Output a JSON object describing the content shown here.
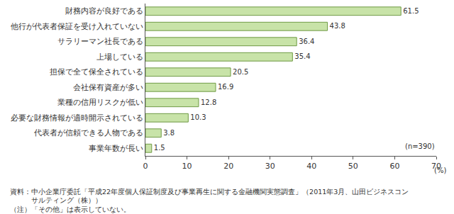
{
  "chart_data": {
    "type": "bar",
    "orientation": "horizontal",
    "categories": [
      "財務内容が良好である",
      "他行が代表者保証を受け入れていない",
      "サラリーマン社長である",
      "上場している",
      "担保で全て保全されている",
      "会社保有資産が多い",
      "業種の信用リスクが低い",
      "必要な財務情報が適時開示されている",
      "代表者が信頼できる人物である",
      "事業年数が長い"
    ],
    "values": [
      61.5,
      43.8,
      36.4,
      35.4,
      20.5,
      16.9,
      12.8,
      10.3,
      3.8,
      1.5
    ],
    "color": "#c8e3a8",
    "data_labels": true,
    "grid": false,
    "xlim": [
      0,
      70
    ],
    "xticks": [
      0,
      10,
      20,
      30,
      40,
      50,
      60,
      70
    ],
    "x_label": "(%)",
    "annotations": [
      {
        "text": "(n=390)"
      }
    ],
    "source": [
      "資料：中小企業庁委託「平成22年度個人保証制度及び事業再生に関する金融機関実態調査」（2011年3月、山田ビジネスコン",
      "サルティング（株））"
    ],
    "note": "（注）「その他」は表示していない。"
  }
}
